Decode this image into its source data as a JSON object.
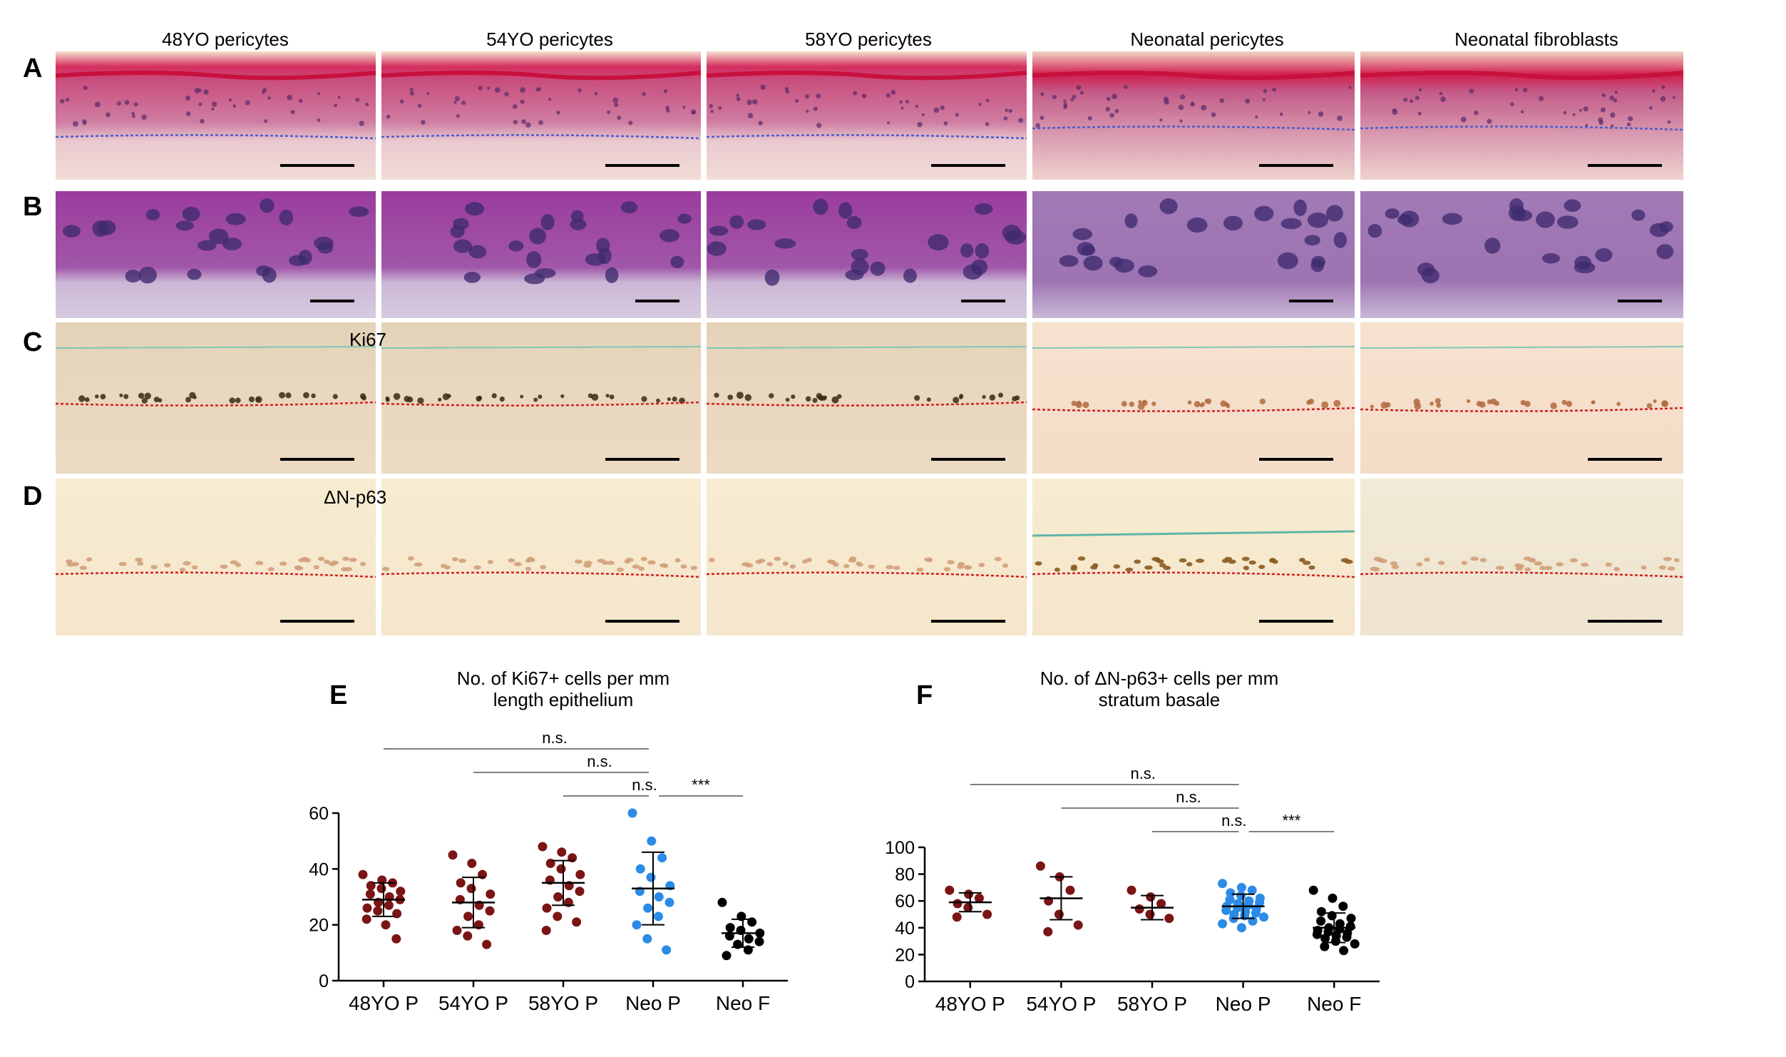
{
  "column_titles": [
    "48YO pericytes",
    "54YO pericytes",
    "58YO pericytes",
    "Neonatal pericytes",
    "Neonatal fibroblasts"
  ],
  "row_labels": [
    "A",
    "B",
    "C",
    "D"
  ],
  "stain_labels": {
    "C": "Ki67",
    "D": "ΔN-p63"
  },
  "colors": {
    "aged": "#7b1414",
    "neo_p": "#2b8be6",
    "neo_f": "#000000"
  },
  "chart_data": [
    {
      "type": "scatter",
      "panel": "E",
      "title_lines": [
        "No. of Ki67+ cells per mm",
        "length epithelium"
      ],
      "categories": [
        "48YO P",
        "54YO P",
        "58YO P",
        "Neo P",
        "Neo F"
      ],
      "ylim": [
        0,
        60
      ],
      "yticks": [
        "0",
        "20",
        "40",
        "60"
      ],
      "mean": [
        29,
        28,
        35,
        33,
        17
      ],
      "sd": [
        6,
        9,
        8,
        13,
        5
      ],
      "points": [
        [
          38,
          36,
          35,
          34,
          33,
          32,
          31,
          30,
          29,
          28,
          27,
          26,
          25,
          24,
          22,
          20,
          15
        ],
        [
          45,
          42,
          38,
          35,
          33,
          31,
          29,
          27,
          25,
          23,
          20,
          18,
          16,
          13
        ],
        [
          48,
          46,
          44,
          42,
          40,
          38,
          36,
          34,
          32,
          30,
          28,
          26,
          23,
          21,
          18
        ],
        [
          60,
          50,
          44,
          40,
          37,
          34,
          32,
          30,
          28,
          26,
          23,
          20,
          15,
          11
        ],
        [
          28,
          23,
          21,
          19,
          18,
          17,
          16,
          15,
          14,
          13,
          11,
          9
        ]
      ],
      "comparisons": [
        {
          "from": 0,
          "to": 3,
          "label": "n.s."
        },
        {
          "from": 1,
          "to": 3,
          "label": "n.s."
        },
        {
          "from": 2,
          "to": 3,
          "label": "n.s."
        },
        {
          "from": 3,
          "to": 4,
          "label": "***"
        }
      ]
    },
    {
      "type": "scatter",
      "panel": "F",
      "title_lines": [
        "No. of ΔN-p63+ cells per mm",
        "stratum basale"
      ],
      "categories": [
        "48YO P",
        "54YO P",
        "58YO P",
        "Neo P",
        "Neo F"
      ],
      "ylim": [
        0,
        100
      ],
      "yticks": [
        "0",
        "20",
        "40",
        "60",
        "80",
        "100"
      ],
      "mean": [
        59,
        62,
        55,
        56,
        40
      ],
      "sd": [
        7,
        16,
        9,
        9,
        11
      ],
      "points": [
        [
          68,
          65,
          62,
          58,
          55,
          50,
          48
        ],
        [
          86,
          78,
          68,
          60,
          50,
          42,
          37
        ],
        [
          68,
          63,
          58,
          54,
          50,
          47
        ],
        [
          73,
          70,
          68,
          66,
          64,
          62,
          61,
          60,
          59,
          58,
          57,
          56,
          55,
          54,
          53,
          52,
          51,
          50,
          49,
          48,
          47,
          45,
          43,
          40
        ],
        [
          68,
          62,
          56,
          52,
          49,
          47,
          45,
          43,
          41,
          40,
          39,
          38,
          37,
          36,
          35,
          34,
          33,
          32,
          30,
          28,
          26,
          23
        ]
      ],
      "comparisons": [
        {
          "from": 0,
          "to": 3,
          "label": "n.s."
        },
        {
          "from": 1,
          "to": 3,
          "label": "n.s."
        },
        {
          "from": 2,
          "to": 3,
          "label": "n.s."
        },
        {
          "from": 3,
          "to": 4,
          "label": "***"
        }
      ]
    }
  ]
}
